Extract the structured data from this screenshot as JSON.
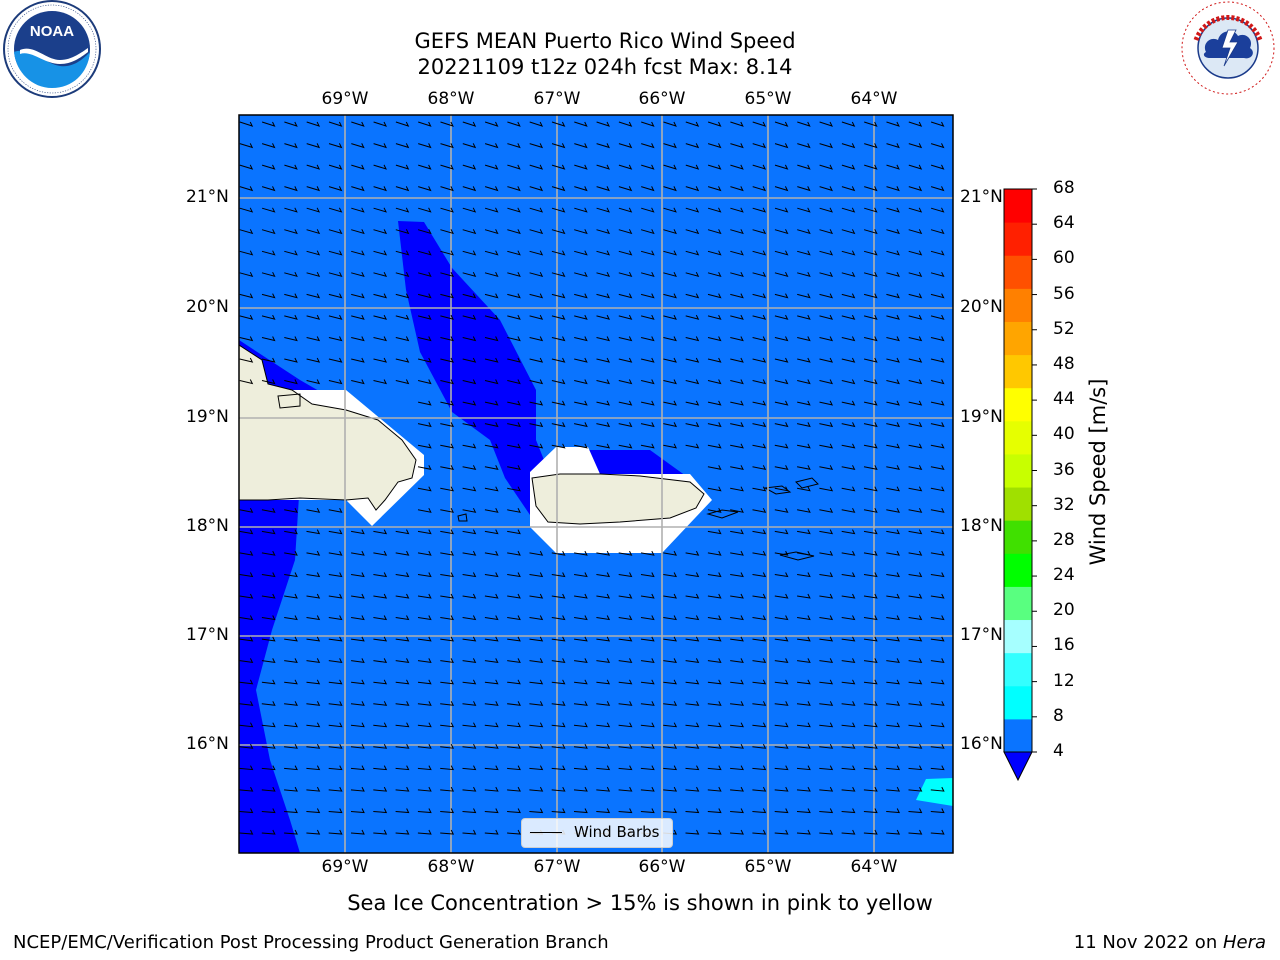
{
  "header": {
    "title_line1": "GEFS MEAN Puerto Rico Wind Speed",
    "title_line2": "20221109 t12z 024h fcst   Max: 8.14"
  },
  "logos": {
    "left": "noara-logo",
    "left_text": "NOAA",
    "left_ring_text": "NATIONAL OCEANIC AND ATMOSPHERIC ADMINISTRATION · U.S. DEPARTMENT OF COMMERCE",
    "right": "nws-logo",
    "right_ring_text": "NATIONAL WEATHER SERVICE"
  },
  "map": {
    "lon_labels": [
      "69°W",
      "68°W",
      "67°W",
      "66°W",
      "65°W",
      "64°W"
    ],
    "lat_labels": [
      "21°N",
      "20°N",
      "19°N",
      "18°N",
      "17°N",
      "16°N"
    ],
    "legend_label": "Wind Barbs",
    "extent": {
      "lon_min": -70.0,
      "lon_max": -63.25,
      "lat_min": 15.0,
      "lat_max": 21.75
    },
    "grid": true,
    "colors": {
      "ocean_4_8": "#0a74ff",
      "below_4": "#0000ff",
      "range_8_12": "#00ffff",
      "land": "#eeeedc"
    }
  },
  "colorbar": {
    "label": "Wind Speed [m/s]",
    "ticks": [
      "68",
      "64",
      "60",
      "56",
      "52",
      "48",
      "44",
      "40",
      "36",
      "32",
      "28",
      "24",
      "20",
      "16",
      "12",
      "8",
      "4"
    ],
    "colors": [
      "#0a74ff",
      "#00ffff",
      "#33ffff",
      "#a6ffff",
      "#59ff80",
      "#00ff00",
      "#40e000",
      "#a0e000",
      "#c8ff00",
      "#e6ff00",
      "#ffff00",
      "#ffc800",
      "#ffa500",
      "#ff8000",
      "#ff5000",
      "#ff2000",
      "#ff0000"
    ],
    "extend_min_color": "#0000ff"
  },
  "subtitle": "Sea Ice Concentration > 15% is shown in pink to yellow",
  "footer": {
    "left": "NCEP/EMC/Verification Post Processing Product Generation Branch",
    "right_date": "11 Nov 2022 on ",
    "right_host": "Hera"
  }
}
